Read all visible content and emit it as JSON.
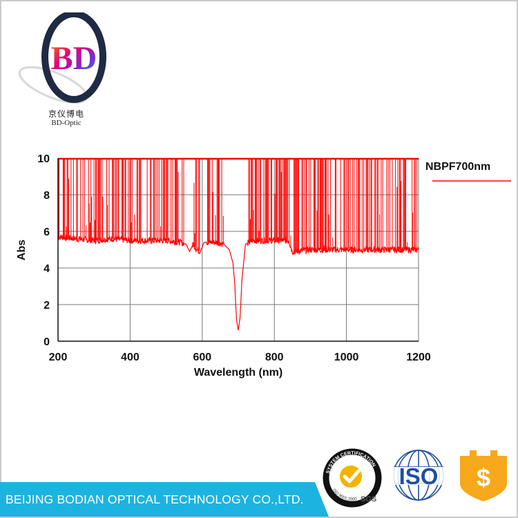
{
  "brand": {
    "logo_letters": "BD",
    "chinese_name": "京仪博电",
    "english_name": "BD-Optic"
  },
  "footer": {
    "company": "BEIJING BODIAN OPTICAL TECHNOLOGY CO.,LTD.",
    "bar_color": "#1db3e0"
  },
  "badges": {
    "sgs_ring_text": "SYSTEM CERTIFICATION",
    "sgs_iso_text": "ISO 9001:2000",
    "sgs_label": "SGS",
    "iso_label": "ISO",
    "dollar_icon": "dollar-shield-icon"
  },
  "chart_data": {
    "type": "line",
    "title": "",
    "xlabel": "Wavelength (nm)",
    "ylabel": "Abs",
    "xlim": [
      200,
      1200
    ],
    "ylim": [
      0,
      10
    ],
    "xticks": [
      200,
      400,
      600,
      800,
      1000,
      1200
    ],
    "yticks": [
      0,
      2,
      4,
      6,
      8,
      10
    ],
    "grid": true,
    "legend_position": "right",
    "series": [
      {
        "name": "NBPF700nm",
        "color": "#ff0000",
        "description_note": "",
        "x": [
          200,
          250,
          300,
          350,
          400,
          450,
          500,
          540,
          555,
          565,
          575,
          585,
          595,
          605,
          620,
          640,
          660,
          675,
          685,
          690,
          695,
          700,
          705,
          710,
          720,
          740,
          760,
          800,
          840,
          850,
          860,
          900,
          950,
          1000,
          1050,
          1100,
          1150,
          1200
        ],
        "y": [
          5.7,
          5.6,
          5.5,
          5.6,
          5.5,
          5.5,
          5.5,
          5.4,
          5.3,
          4.9,
          5.3,
          5.0,
          4.9,
          5.4,
          5.4,
          5.4,
          5.3,
          5.0,
          4.3,
          3.2,
          1.2,
          0.6,
          1.3,
          3.3,
          5.3,
          5.5,
          5.5,
          5.5,
          5.5,
          4.9,
          4.9,
          5.0,
          5.0,
          5.0,
          5.0,
          5.0,
          5.0,
          5.0
        ]
      }
    ],
    "noise_clipped_at_max": true,
    "clear_gaps_nm": [
      [
        550,
        572
      ],
      [
        595,
        612
      ],
      [
        660,
        725
      ]
    ]
  }
}
